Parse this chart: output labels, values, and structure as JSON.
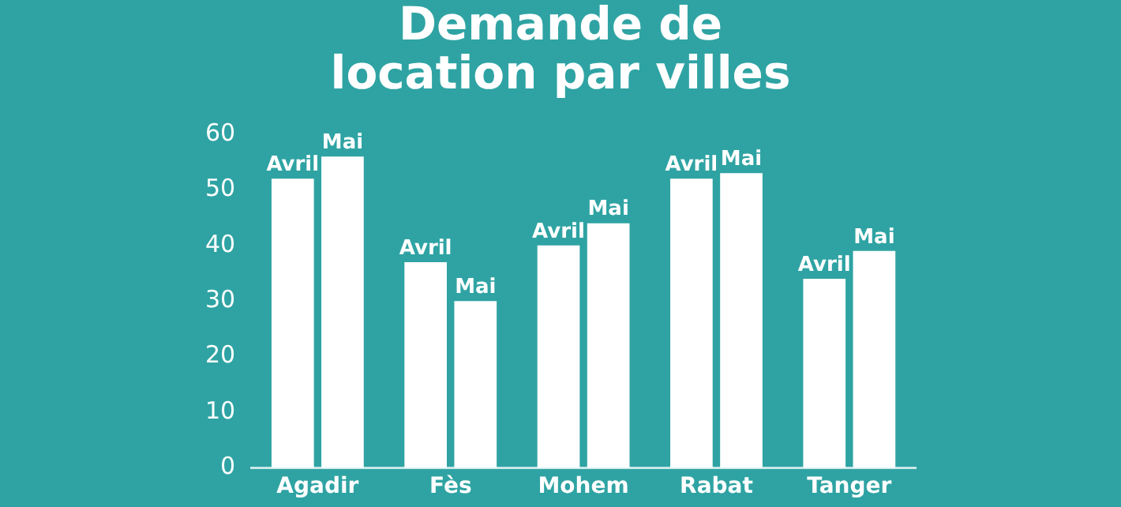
{
  "chart_data": {
    "type": "bar",
    "title": "Demande de location par villes",
    "categories": [
      "Agadir",
      "Fès",
      "Mohem",
      "Rabat",
      "Tanger"
    ],
    "series": [
      {
        "name": "Avril",
        "color": "#ffffff",
        "values": [
          52,
          37,
          40,
          52,
          34
        ]
      },
      {
        "name": "Mai",
        "color": "#ffffff",
        "values": [
          56,
          30,
          44,
          53,
          39
        ]
      }
    ],
    "ylim": [
      0,
      60
    ],
    "yticks": [
      0,
      10,
      20,
      30,
      40,
      50,
      60
    ],
    "grid": false,
    "legend": false
  }
}
